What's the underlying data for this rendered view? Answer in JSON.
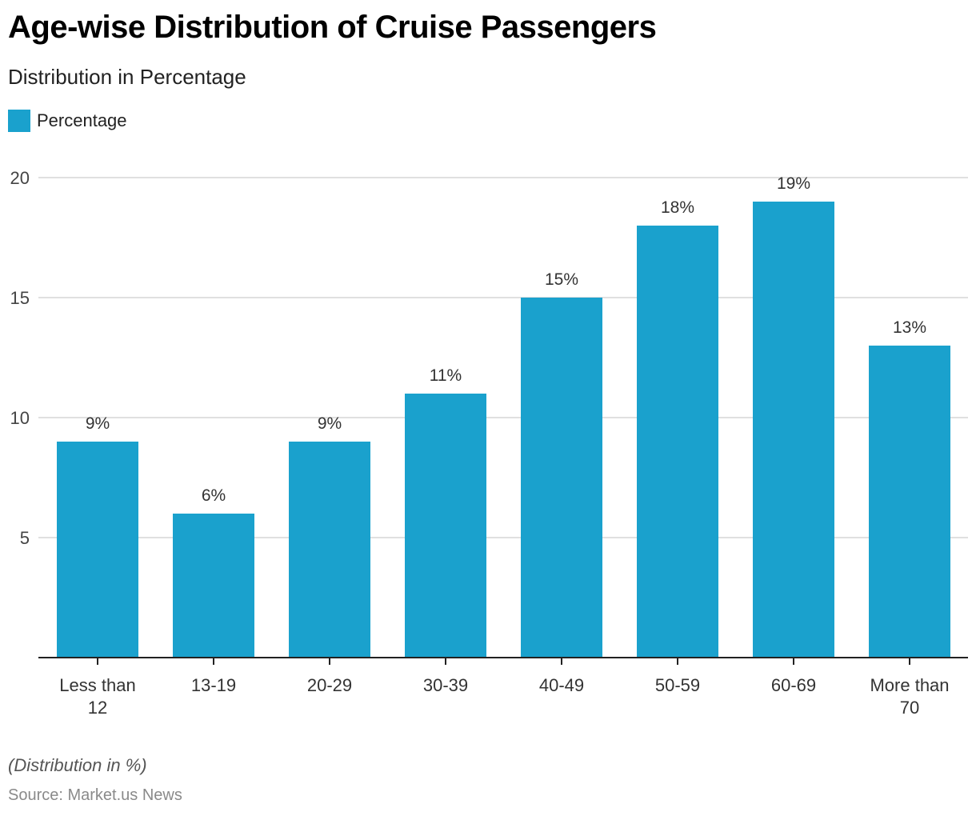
{
  "header": {
    "title": "Age-wise Distribution of Cruise Passengers",
    "subtitle": "Distribution in Percentage"
  },
  "legend": {
    "label": "Percentage",
    "color": "#1aa1cd"
  },
  "footer": {
    "note": "(Distribution in %)",
    "source": "Source: Market.us News"
  },
  "chart_data": {
    "type": "bar",
    "title": "Age-wise Distribution of Cruise Passengers",
    "subtitle": "Distribution in Percentage",
    "xlabel": "",
    "ylabel": "",
    "categories": [
      [
        "Less than",
        "12"
      ],
      [
        "13-19"
      ],
      [
        "20-29"
      ],
      [
        "30-39"
      ],
      [
        "40-49"
      ],
      [
        "50-59"
      ],
      [
        "60-69"
      ],
      [
        "More than",
        "70"
      ]
    ],
    "series": [
      {
        "name": "Percentage",
        "color": "#1aa1cd",
        "values": [
          9,
          6,
          9,
          11,
          15,
          18,
          19,
          13
        ]
      }
    ],
    "data_labels": [
      "9%",
      "6%",
      "9%",
      "11%",
      "15%",
      "18%",
      "19%",
      "13%"
    ],
    "ylim": [
      0,
      20
    ],
    "yticks": [
      5,
      10,
      15,
      20
    ],
    "grid": true,
    "legend_position": "top-left"
  }
}
